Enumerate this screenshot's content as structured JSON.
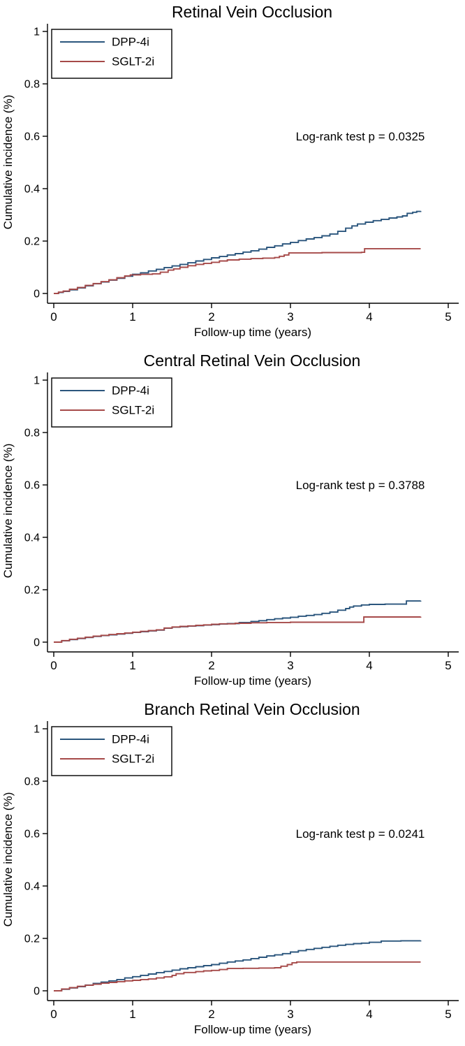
{
  "figure": {
    "title_color": "#24396b",
    "axis_color": "#000000",
    "background_color": "#ffffff"
  },
  "chart_data": [
    {
      "type": "line",
      "subtype": "step",
      "title": "Retinal Vein Occlusion",
      "xlabel": "Follow-up time (years)",
      "ylabel": "Cumulative incidence (%)",
      "annotation": "Log-rank test p = 0.0325",
      "xlim": [
        0,
        5
      ],
      "ylim": [
        0,
        1
      ],
      "xticks": [
        0,
        1,
        2,
        3,
        4,
        5
      ],
      "yticks": [
        0,
        0.2,
        0.4,
        0.6,
        0.8,
        1
      ],
      "grid": false,
      "legend_position": "top-left",
      "series": [
        {
          "name": "DPP-4i",
          "color": "#2b567d",
          "points": [
            [
              0,
              0
            ],
            [
              0.06,
              0.004
            ],
            [
              0.12,
              0.008
            ],
            [
              0.2,
              0.014
            ],
            [
              0.3,
              0.021
            ],
            [
              0.4,
              0.029
            ],
            [
              0.5,
              0.037
            ],
            [
              0.6,
              0.044
            ],
            [
              0.7,
              0.051
            ],
            [
              0.8,
              0.058
            ],
            [
              0.9,
              0.066
            ],
            [
              1.0,
              0.073
            ],
            [
              1.1,
              0.079
            ],
            [
              1.2,
              0.086
            ],
            [
              1.3,
              0.092
            ],
            [
              1.4,
              0.099
            ],
            [
              1.5,
              0.105
            ],
            [
              1.6,
              0.111
            ],
            [
              1.7,
              0.117
            ],
            [
              1.8,
              0.124
            ],
            [
              1.9,
              0.13
            ],
            [
              2.0,
              0.136
            ],
            [
              2.1,
              0.141
            ],
            [
              2.2,
              0.147
            ],
            [
              2.3,
              0.152
            ],
            [
              2.4,
              0.158
            ],
            [
              2.5,
              0.163
            ],
            [
              2.6,
              0.169
            ],
            [
              2.7,
              0.176
            ],
            [
              2.8,
              0.182
            ],
            [
              2.9,
              0.189
            ],
            [
              3.0,
              0.195
            ],
            [
              3.1,
              0.202
            ],
            [
              3.2,
              0.208
            ],
            [
              3.3,
              0.213
            ],
            [
              3.4,
              0.22
            ],
            [
              3.5,
              0.227
            ],
            [
              3.6,
              0.237
            ],
            [
              3.7,
              0.249
            ],
            [
              3.78,
              0.258
            ],
            [
              3.85,
              0.265
            ],
            [
              3.95,
              0.272
            ],
            [
              4.05,
              0.278
            ],
            [
              4.15,
              0.283
            ],
            [
              4.25,
              0.288
            ],
            [
              4.35,
              0.292
            ],
            [
              4.42,
              0.296
            ],
            [
              4.48,
              0.306
            ],
            [
              4.55,
              0.31
            ],
            [
              4.6,
              0.313
            ],
            [
              4.65,
              0.315
            ]
          ]
        },
        {
          "name": "SGLT-2i",
          "color": "#a64a49",
          "points": [
            [
              0,
              0
            ],
            [
              0.06,
              0.005
            ],
            [
              0.12,
              0.009
            ],
            [
              0.2,
              0.016
            ],
            [
              0.3,
              0.023
            ],
            [
              0.4,
              0.031
            ],
            [
              0.5,
              0.038
            ],
            [
              0.6,
              0.045
            ],
            [
              0.7,
              0.052
            ],
            [
              0.8,
              0.06
            ],
            [
              0.9,
              0.067
            ],
            [
              0.97,
              0.071
            ],
            [
              1.1,
              0.073
            ],
            [
              1.25,
              0.075
            ],
            [
              1.35,
              0.081
            ],
            [
              1.45,
              0.089
            ],
            [
              1.52,
              0.094
            ],
            [
              1.6,
              0.1
            ],
            [
              1.7,
              0.106
            ],
            [
              1.8,
              0.111
            ],
            [
              1.9,
              0.115
            ],
            [
              2.0,
              0.119
            ],
            [
              2.1,
              0.124
            ],
            [
              2.2,
              0.128
            ],
            [
              2.35,
              0.131
            ],
            [
              2.5,
              0.133
            ],
            [
              2.65,
              0.135
            ],
            [
              2.8,
              0.137
            ],
            [
              2.86,
              0.142
            ],
            [
              2.92,
              0.147
            ],
            [
              2.98,
              0.155
            ],
            [
              3.4,
              0.156
            ],
            [
              3.9,
              0.157
            ],
            [
              3.94,
              0.171
            ],
            [
              4.65,
              0.171
            ]
          ]
        }
      ]
    },
    {
      "type": "line",
      "subtype": "step",
      "title": "Central Retinal Vein Occlusion",
      "xlabel": "Follow-up time (years)",
      "ylabel": "Cumulative incidence (%)",
      "annotation": "Log-rank test p = 0.3788",
      "xlim": [
        0,
        5
      ],
      "ylim": [
        0,
        1
      ],
      "xticks": [
        0,
        1,
        2,
        3,
        4,
        5
      ],
      "yticks": [
        0,
        0.2,
        0.4,
        0.6,
        0.8,
        1
      ],
      "grid": false,
      "legend_position": "top-left",
      "series": [
        {
          "name": "DPP-4i",
          "color": "#2b567d",
          "points": [
            [
              0,
              0
            ],
            [
              0.1,
              0.005
            ],
            [
              0.2,
              0.01
            ],
            [
              0.3,
              0.014
            ],
            [
              0.4,
              0.018
            ],
            [
              0.5,
              0.022
            ],
            [
              0.6,
              0.025
            ],
            [
              0.7,
              0.028
            ],
            [
              0.8,
              0.031
            ],
            [
              0.9,
              0.034
            ],
            [
              1.0,
              0.037
            ],
            [
              1.1,
              0.04
            ],
            [
              1.2,
              0.043
            ],
            [
              1.3,
              0.046
            ],
            [
              1.4,
              0.053
            ],
            [
              1.5,
              0.057
            ],
            [
              1.6,
              0.059
            ],
            [
              1.7,
              0.061
            ],
            [
              1.8,
              0.063
            ],
            [
              1.9,
              0.065
            ],
            [
              2.0,
              0.067
            ],
            [
              2.1,
              0.069
            ],
            [
              2.2,
              0.071
            ],
            [
              2.35,
              0.075
            ],
            [
              2.5,
              0.079
            ],
            [
              2.6,
              0.082
            ],
            [
              2.7,
              0.086
            ],
            [
              2.8,
              0.089
            ],
            [
              2.9,
              0.092
            ],
            [
              3.0,
              0.095
            ],
            [
              3.1,
              0.099
            ],
            [
              3.2,
              0.102
            ],
            [
              3.3,
              0.105
            ],
            [
              3.4,
              0.11
            ],
            [
              3.5,
              0.115
            ],
            [
              3.6,
              0.122
            ],
            [
              3.7,
              0.128
            ],
            [
              3.75,
              0.134
            ],
            [
              3.8,
              0.138
            ],
            [
              3.9,
              0.142
            ],
            [
              4.0,
              0.144
            ],
            [
              4.2,
              0.145
            ],
            [
              4.47,
              0.157
            ],
            [
              4.65,
              0.158
            ]
          ]
        },
        {
          "name": "SGLT-2i",
          "color": "#a64a49",
          "points": [
            [
              0,
              0
            ],
            [
              0.1,
              0.006
            ],
            [
              0.2,
              0.011
            ],
            [
              0.3,
              0.015
            ],
            [
              0.4,
              0.019
            ],
            [
              0.5,
              0.023
            ],
            [
              0.6,
              0.026
            ],
            [
              0.7,
              0.029
            ],
            [
              0.8,
              0.032
            ],
            [
              0.9,
              0.035
            ],
            [
              1.0,
              0.038
            ],
            [
              1.1,
              0.041
            ],
            [
              1.2,
              0.044
            ],
            [
              1.3,
              0.047
            ],
            [
              1.4,
              0.054
            ],
            [
              1.5,
              0.058
            ],
            [
              1.6,
              0.06
            ],
            [
              1.7,
              0.062
            ],
            [
              1.8,
              0.064
            ],
            [
              1.9,
              0.066
            ],
            [
              2.0,
              0.068
            ],
            [
              2.1,
              0.07
            ],
            [
              2.3,
              0.072
            ],
            [
              2.5,
              0.074
            ],
            [
              2.7,
              0.075
            ],
            [
              3.0,
              0.076
            ],
            [
              3.88,
              0.076
            ],
            [
              3.93,
              0.096
            ],
            [
              4.65,
              0.097
            ]
          ]
        }
      ]
    },
    {
      "type": "line",
      "subtype": "step",
      "title": "Branch Retinal Vein Occlusion",
      "xlabel": "Follow-up time (years)",
      "ylabel": "Cumulative incidence (%)",
      "annotation": "Log-rank test p = 0.0241",
      "xlim": [
        0,
        5
      ],
      "ylim": [
        0,
        1
      ],
      "xticks": [
        0,
        1,
        2,
        3,
        4,
        5
      ],
      "yticks": [
        0,
        0.2,
        0.4,
        0.6,
        0.8,
        1
      ],
      "grid": false,
      "legend_position": "top-left",
      "series": [
        {
          "name": "DPP-4i",
          "color": "#2b567d",
          "points": [
            [
              0,
              0
            ],
            [
              0.1,
              0.006
            ],
            [
              0.2,
              0.011
            ],
            [
              0.3,
              0.016
            ],
            [
              0.4,
              0.022
            ],
            [
              0.5,
              0.028
            ],
            [
              0.6,
              0.033
            ],
            [
              0.7,
              0.038
            ],
            [
              0.8,
              0.043
            ],
            [
              0.9,
              0.049
            ],
            [
              1.0,
              0.054
            ],
            [
              1.1,
              0.059
            ],
            [
              1.2,
              0.064
            ],
            [
              1.3,
              0.069
            ],
            [
              1.4,
              0.074
            ],
            [
              1.5,
              0.079
            ],
            [
              1.6,
              0.084
            ],
            [
              1.7,
              0.088
            ],
            [
              1.8,
              0.092
            ],
            [
              1.9,
              0.096
            ],
            [
              2.0,
              0.1
            ],
            [
              2.1,
              0.105
            ],
            [
              2.2,
              0.11
            ],
            [
              2.3,
              0.114
            ],
            [
              2.4,
              0.118
            ],
            [
              2.5,
              0.123
            ],
            [
              2.6,
              0.128
            ],
            [
              2.7,
              0.133
            ],
            [
              2.8,
              0.137
            ],
            [
              2.9,
              0.142
            ],
            [
              3.0,
              0.148
            ],
            [
              3.1,
              0.153
            ],
            [
              3.2,
              0.158
            ],
            [
              3.3,
              0.162
            ],
            [
              3.4,
              0.166
            ],
            [
              3.5,
              0.17
            ],
            [
              3.6,
              0.174
            ],
            [
              3.7,
              0.177
            ],
            [
              3.8,
              0.18
            ],
            [
              3.9,
              0.182
            ],
            [
              4.0,
              0.185
            ],
            [
              4.15,
              0.19
            ],
            [
              4.4,
              0.191
            ],
            [
              4.65,
              0.192
            ]
          ]
        },
        {
          "name": "SGLT-2i",
          "color": "#a64a49",
          "points": [
            [
              0,
              0
            ],
            [
              0.1,
              0.007
            ],
            [
              0.2,
              0.012
            ],
            [
              0.3,
              0.017
            ],
            [
              0.4,
              0.021
            ],
            [
              0.5,
              0.025
            ],
            [
              0.6,
              0.029
            ],
            [
              0.7,
              0.032
            ],
            [
              0.8,
              0.035
            ],
            [
              0.9,
              0.038
            ],
            [
              1.0,
              0.04
            ],
            [
              1.1,
              0.043
            ],
            [
              1.2,
              0.045
            ],
            [
              1.3,
              0.049
            ],
            [
              1.4,
              0.053
            ],
            [
              1.5,
              0.059
            ],
            [
              1.55,
              0.065
            ],
            [
              1.65,
              0.07
            ],
            [
              1.8,
              0.073
            ],
            [
              1.9,
              0.076
            ],
            [
              2.0,
              0.078
            ],
            [
              2.1,
              0.081
            ],
            [
              2.2,
              0.085
            ],
            [
              2.4,
              0.086
            ],
            [
              2.6,
              0.087
            ],
            [
              2.8,
              0.088
            ],
            [
              2.88,
              0.094
            ],
            [
              2.96,
              0.1
            ],
            [
              3.02,
              0.107
            ],
            [
              3.08,
              0.11
            ],
            [
              4.65,
              0.11
            ]
          ]
        }
      ]
    }
  ]
}
